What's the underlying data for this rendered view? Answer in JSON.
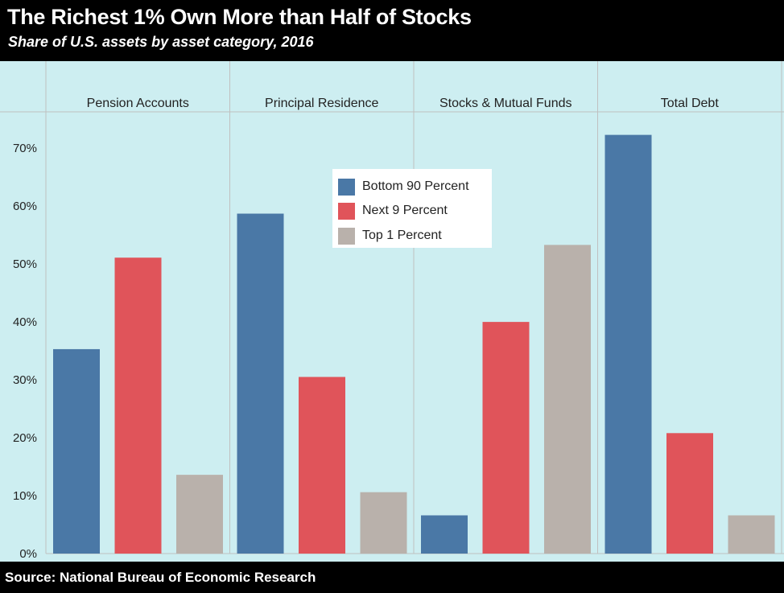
{
  "title": "The Richest 1% Own More than Half of Stocks",
  "subtitle": "Share of U.S. assets by asset category, 2016",
  "source": "Source: National Bureau of Economic Research",
  "colors": {
    "background": "#cdeef1",
    "gridline": "#c0c0c0"
  },
  "chart_data": {
    "type": "bar",
    "facets": [
      "Pension Accounts",
      "Principal Residence",
      "Stocks & Mutual Funds",
      "Total Debt"
    ],
    "series": [
      {
        "name": "Bottom 90 Percent",
        "color": "#4a78a6",
        "values": [
          35.3,
          58.7,
          6.6,
          72.3
        ]
      },
      {
        "name": "Next 9 Percent",
        "color": "#e0545a",
        "values": [
          51.1,
          30.5,
          40.0,
          20.8
        ]
      },
      {
        "name": "Top 1 Percent",
        "color": "#b9b1ab",
        "values": [
          13.6,
          10.6,
          53.3,
          6.6
        ]
      }
    ],
    "yticks": [
      "0%",
      "10%",
      "20%",
      "30%",
      "40%",
      "50%",
      "60%",
      "70%"
    ],
    "ylim": [
      0,
      76
    ],
    "legend_position": "top-center"
  }
}
